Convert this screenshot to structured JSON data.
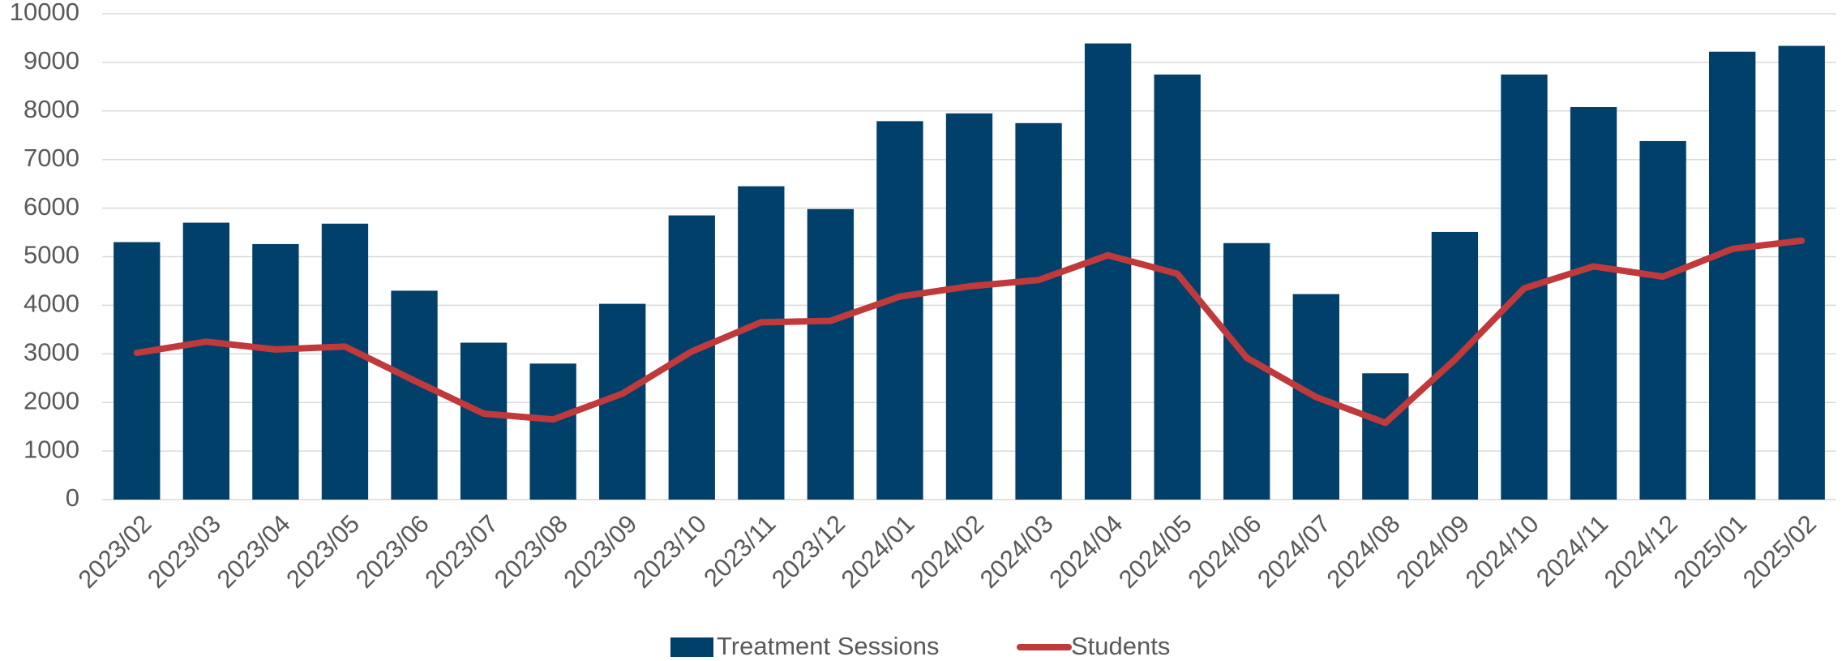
{
  "chart_data": {
    "type": "bar",
    "categories": [
      "2023/02",
      "2023/03",
      "2023/04",
      "2023/05",
      "2023/06",
      "2023/07",
      "2023/08",
      "2023/09",
      "2023/10",
      "2023/11",
      "2023/12",
      "2024/01",
      "2024/02",
      "2024/03",
      "2024/04",
      "2024/05",
      "2024/06",
      "2024/07",
      "2024/08",
      "2024/09",
      "2024/10",
      "2024/11",
      "2024/12",
      "2025/01",
      "2025/02"
    ],
    "series": [
      {
        "name": "Treatment Sessions",
        "type": "bar",
        "color": "#00406b",
        "values": [
          5300,
          5700,
          5260,
          5680,
          4300,
          3230,
          2800,
          4030,
          5850,
          6450,
          5980,
          7790,
          7950,
          7750,
          9390,
          8750,
          5280,
          4230,
          2600,
          5510,
          8750,
          8080,
          7380,
          9220,
          9340
        ]
      },
      {
        "name": "Students",
        "type": "line",
        "color": "#c0393b",
        "values": [
          3020,
          3250,
          3090,
          3150,
          2450,
          1770,
          1650,
          2180,
          3050,
          3650,
          3680,
          4180,
          4390,
          4520,
          5030,
          4650,
          2920,
          2110,
          1580,
          2880,
          4350,
          4800,
          4590,
          5160,
          5330
        ]
      }
    ],
    "ylim": [
      0,
      10000
    ],
    "yticks": [
      0,
      1000,
      2000,
      3000,
      4000,
      5000,
      6000,
      7000,
      8000,
      9000,
      10000
    ],
    "grid": true,
    "legend": "bottom"
  }
}
